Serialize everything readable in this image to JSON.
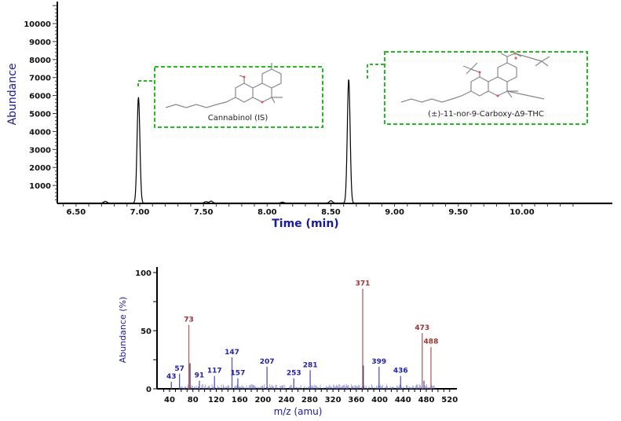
{
  "chart_data": [
    {
      "type": "line",
      "title": "",
      "xlabel": "Time (min)",
      "ylabel": "Abundance",
      "xlim": [
        6.35,
        10.4
      ],
      "ylim": [
        0,
        11200
      ],
      "xticks": [
        "6.50",
        "7.00",
        "7.50",
        "8.00",
        "8.50",
        "9.00",
        "9.50",
        "10.00"
      ],
      "yticks": [
        "1000",
        "2000",
        "3000",
        "4000",
        "5000",
        "6000",
        "7000",
        "8000",
        "9000",
        "10000"
      ],
      "peaks": [
        {
          "time": 6.73,
          "abundance": 100
        },
        {
          "time": 6.99,
          "abundance": 5900
        },
        {
          "time": 7.52,
          "abundance": 80
        },
        {
          "time": 7.56,
          "abundance": 110
        },
        {
          "time": 8.12,
          "abundance": 50
        },
        {
          "time": 8.5,
          "abundance": 130
        },
        {
          "time": 8.64,
          "abundance": 6900
        }
      ],
      "grid": false,
      "line_color": "#000000",
      "annotations": [
        {
          "label": "Cannabinol (IS)",
          "peak_time": 6.99,
          "box_color": "#22bb22"
        },
        {
          "label": "(±)-11-nor-9-Carboxy-Δ9-THC",
          "peak_time": 8.64,
          "box_color": "#22bb22"
        }
      ]
    },
    {
      "type": "bar",
      "title": "",
      "xlabel": "m/z (amu)",
      "ylabel": "Abundance (%)",
      "xlim": [
        20,
        520
      ],
      "ylim": [
        0,
        100
      ],
      "xticks": [
        "40",
        "80",
        "120",
        "160",
        "200",
        "240",
        "280",
        "320",
        "360",
        "400",
        "440",
        "480",
        "520"
      ],
      "yticks": [
        "0",
        "50",
        "100"
      ],
      "peaks": [
        {
          "mz": 43,
          "abundance": 6,
          "label": "43",
          "color": "#2222aa"
        },
        {
          "mz": 57,
          "abundance": 13,
          "label": "57",
          "color": "#2222aa"
        },
        {
          "mz": 73,
          "abundance": 55,
          "label": "73",
          "color": "#a03030"
        },
        {
          "mz": 75,
          "abundance": 22,
          "label": "",
          "color": "#552255"
        },
        {
          "mz": 91,
          "abundance": 7,
          "label": "91",
          "color": "#2222aa"
        },
        {
          "mz": 117,
          "abundance": 11,
          "label": "117",
          "color": "#2222aa"
        },
        {
          "mz": 147,
          "abundance": 27,
          "label": "147",
          "color": "#2222aa"
        },
        {
          "mz": 157,
          "abundance": 9,
          "label": "157",
          "color": "#2222aa"
        },
        {
          "mz": 207,
          "abundance": 19,
          "label": "207",
          "color": "#2222aa"
        },
        {
          "mz": 253,
          "abundance": 9,
          "label": "253",
          "color": "#2222aa"
        },
        {
          "mz": 281,
          "abundance": 16,
          "label": "281",
          "color": "#2222aa"
        },
        {
          "mz": 371,
          "abundance": 86,
          "label": "371",
          "color": "#a03030"
        },
        {
          "mz": 372,
          "abundance": 20,
          "label": "",
          "color": "#552255"
        },
        {
          "mz": 399,
          "abundance": 19,
          "label": "399",
          "color": "#2222aa"
        },
        {
          "mz": 436,
          "abundance": 11,
          "label": "436",
          "color": "#2222aa"
        },
        {
          "mz": 473,
          "abundance": 48,
          "label": "473",
          "color": "#a03030"
        },
        {
          "mz": 476,
          "abundance": 7,
          "label": "",
          "color": "#2222aa"
        },
        {
          "mz": 488,
          "abundance": 36,
          "label": "488",
          "color": "#a03030"
        }
      ],
      "grid": false
    }
  ]
}
